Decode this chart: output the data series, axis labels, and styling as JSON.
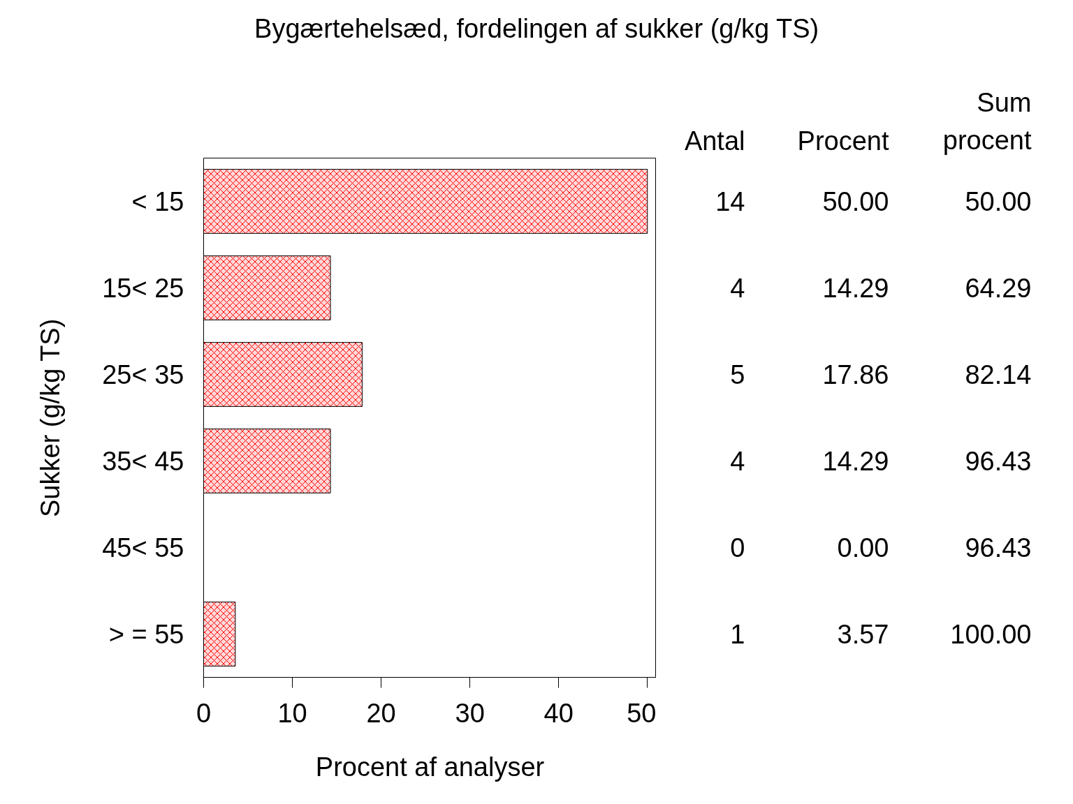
{
  "chart_data": {
    "type": "bar",
    "orientation": "horizontal",
    "title": "Bygærtehelsæd, fordelingen af sukker (g/kg TS)",
    "xlabel": "Procent af analyser",
    "ylabel": "Sukker (g/kg TS)",
    "categories": [
      "< 15",
      "15< 25",
      "25< 35",
      "35< 45",
      "45< 55",
      "> = 55"
    ],
    "values": [
      50.0,
      14.29,
      17.86,
      14.29,
      0.0,
      3.57
    ],
    "value_labels": [
      "50.00",
      "14.29",
      "17.86",
      "14.29",
      "0.00",
      "3.57"
    ],
    "color": "#ff0000",
    "xlim": [
      0,
      51
    ],
    "xticks": [
      0,
      10,
      20,
      30,
      40,
      50
    ],
    "grid": false,
    "annotations": [
      "Antal",
      "Procent",
      "Sum procent",
      "14",
      "4",
      "5",
      "4",
      "0",
      "1",
      "50.00",
      "64.29",
      "82.14",
      "96.43",
      "96.43",
      "100.00"
    ]
  }
}
